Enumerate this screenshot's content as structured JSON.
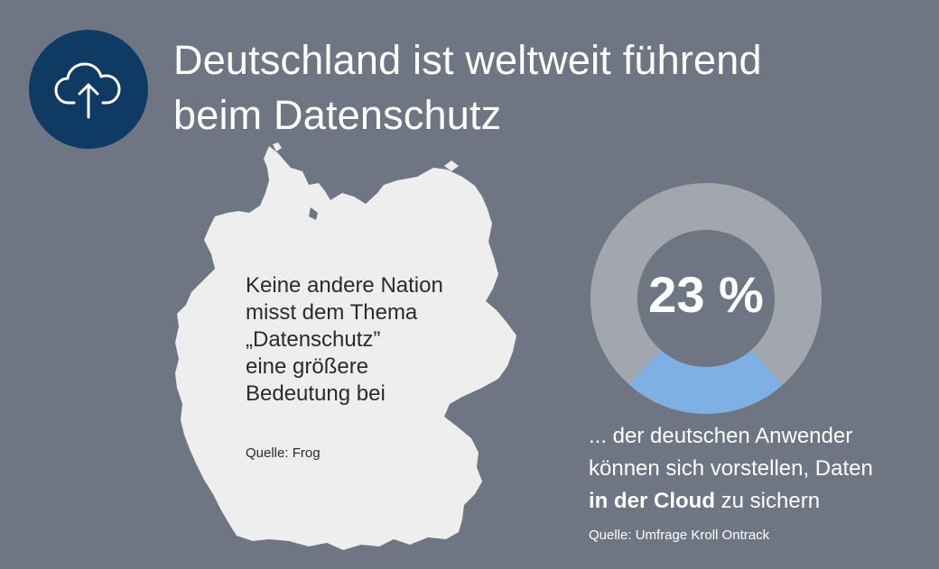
{
  "header": {
    "title_line1": "Deutschland ist weltweit führend",
    "title_line2": "beim Datenschutz",
    "icon": "cloud-upload-icon"
  },
  "map_panel": {
    "line1": "Keine andere Nation",
    "line2": "misst dem Thema",
    "line3": "„Datenschutz”",
    "line4": "eine größere",
    "line5": "Bedeutung bei",
    "source": "Quelle: Frog"
  },
  "stat_panel": {
    "percent_value": 23,
    "percent_label": "23 %",
    "desc_line1": "... der deutschen Anwender",
    "desc_line2": "können sich vorstellen, Daten",
    "desc_line3_bold": "in der Cloud",
    "desc_line3_rest": " zu sichern",
    "source": "Quelle: Umfrage Kroll Ontrack"
  },
  "colors": {
    "background": "#6e7684",
    "icon_circle": "#0f3a63",
    "map_fill": "#eeeeee",
    "donut_track": "#a2a7ad",
    "donut_fill": "#7fb0e3"
  }
}
